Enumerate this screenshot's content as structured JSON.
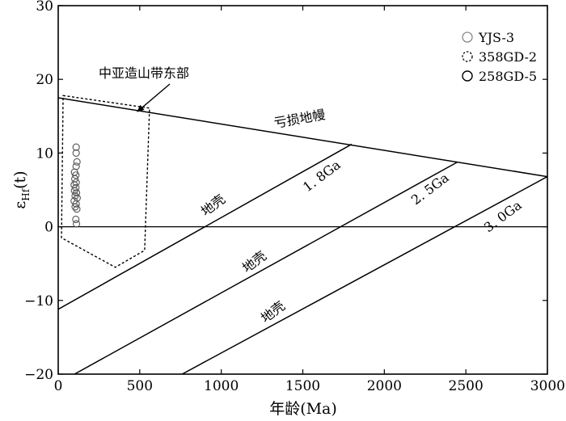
{
  "chart_data": {
    "type": "scatter",
    "xlabel": "年龄(Ma)",
    "ylabel_main": "ε",
    "ylabel_sub": "Hf",
    "ylabel_tail": "(t)",
    "xlim": [
      0,
      3000
    ],
    "ylim": [
      -20,
      30
    ],
    "x_ticks": [
      {
        "value": 0,
        "label": "0"
      },
      {
        "value": 500,
        "label": "500"
      },
      {
        "value": 1000,
        "label": "1000"
      },
      {
        "value": 1500,
        "label": "1500"
      },
      {
        "value": 2000,
        "label": "2000"
      },
      {
        "value": 2500,
        "label": "2500"
      },
      {
        "value": 3000,
        "label": "3000"
      }
    ],
    "y_ticks": [
      {
        "value": -20,
        "label": "−20"
      },
      {
        "value": -10,
        "label": "−10"
      },
      {
        "value": 0,
        "label": "0"
      },
      {
        "value": 10,
        "label": "10"
      },
      {
        "value": 20,
        "label": "20"
      },
      {
        "value": 30,
        "label": "30"
      }
    ],
    "grid": false,
    "legend": {
      "placement": "top-right",
      "entries": [
        {
          "label": "YJS-3",
          "marker": "circle-gray"
        },
        {
          "label": "358GD-2",
          "marker": "circle-dashed"
        },
        {
          "label": "258GD-5",
          "marker": "circle-black"
        }
      ]
    },
    "lines": [
      {
        "label": "亏损地幔",
        "points": [
          [
            0,
            17.5
          ],
          [
            3000,
            6.8
          ]
        ]
      },
      {
        "label": "1. 8Ga",
        "points": [
          [
            0,
            -11.2
          ],
          [
            1800,
            11.2
          ]
        ]
      },
      {
        "label": "2. 5Ga",
        "points": [
          [
            100,
            -20
          ],
          [
            2450,
            8.8
          ]
        ]
      },
      {
        "label": "3. 0Ga",
        "points": [
          [
            760,
            -20
          ],
          [
            3000,
            6.8
          ]
        ]
      }
    ],
    "crust_labels": [
      "地壳",
      "地壳",
      "地壳"
    ],
    "zero_line": 0,
    "region": {
      "label": "中亚造山带东部",
      "polygon": [
        [
          30,
          17.8
        ],
        [
          560,
          16.1
        ],
        [
          530,
          -3.2
        ],
        [
          350,
          -5.5
        ],
        [
          20,
          -1.5
        ]
      ]
    },
    "points": [
      {
        "x": 110,
        "y": 10.8
      },
      {
        "x": 110,
        "y": 10.0
      },
      {
        "x": 115,
        "y": 8.8
      },
      {
        "x": 110,
        "y": 8.2
      },
      {
        "x": 100,
        "y": 7.4
      },
      {
        "x": 108,
        "y": 7.0
      },
      {
        "x": 102,
        "y": 6.5
      },
      {
        "x": 110,
        "y": 6.0
      },
      {
        "x": 98,
        "y": 5.7
      },
      {
        "x": 108,
        "y": 5.3
      },
      {
        "x": 100,
        "y": 4.9
      },
      {
        "x": 112,
        "y": 4.6
      },
      {
        "x": 104,
        "y": 4.2
      },
      {
        "x": 116,
        "y": 3.9
      },
      {
        "x": 98,
        "y": 3.5
      },
      {
        "x": 110,
        "y": 3.1
      },
      {
        "x": 104,
        "y": 2.7
      },
      {
        "x": 114,
        "y": 2.4
      },
      {
        "x": 108,
        "y": 1.0
      },
      {
        "x": 112,
        "y": 0.4
      }
    ]
  }
}
